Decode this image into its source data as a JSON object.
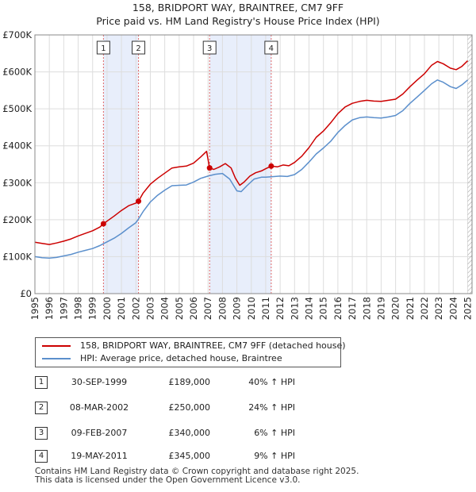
{
  "chart_data": {
    "type": "line",
    "title": "158, BRIDPORT WAY, BRAINTREE, CM7 9FF",
    "subtitle": "Price paid vs. HM Land Registry's House Price Index (HPI)",
    "xlim": [
      1995,
      2025.3
    ],
    "ylim": [
      0,
      700000
    ],
    "y_ticks": [
      {
        "value": 0,
        "label": "£0"
      },
      {
        "value": 100000,
        "label": "£100K"
      },
      {
        "value": 200000,
        "label": "£200K"
      },
      {
        "value": 300000,
        "label": "£300K"
      },
      {
        "value": 400000,
        "label": "£400K"
      },
      {
        "value": 500000,
        "label": "£500K"
      },
      {
        "value": 600000,
        "label": "£600K"
      },
      {
        "value": 700000,
        "label": "£700K"
      }
    ],
    "x_ticks": [
      "1995",
      "1996",
      "1997",
      "1998",
      "1999",
      "2000",
      "2001",
      "2002",
      "2003",
      "2004",
      "2005",
      "2006",
      "2007",
      "2008",
      "2009",
      "2010",
      "2011",
      "2012",
      "2013",
      "2014",
      "2015",
      "2016",
      "2017",
      "2018",
      "2019",
      "2020",
      "2021",
      "2022",
      "2023",
      "2024",
      "2025"
    ],
    "shaded_regions": [
      [
        1999.75,
        2002.18
      ],
      [
        2007.11,
        2011.38
      ]
    ],
    "series": [
      {
        "name": "158, BRIDPORT WAY, BRAINTREE, CM7 9FF (detached house)",
        "color": "#cc0000",
        "points": [
          [
            1995.0,
            139000
          ],
          [
            1995.5,
            136000
          ],
          [
            1996.0,
            133000
          ],
          [
            1996.5,
            137000
          ],
          [
            1997.0,
            142000
          ],
          [
            1997.5,
            148000
          ],
          [
            1998.0,
            156000
          ],
          [
            1998.5,
            163000
          ],
          [
            1999.0,
            170000
          ],
          [
            1999.5,
            180000
          ],
          [
            1999.75,
            189000
          ],
          [
            2000.0,
            196000
          ],
          [
            2000.5,
            210000
          ],
          [
            2001.0,
            225000
          ],
          [
            2001.5,
            238000
          ],
          [
            2002.0,
            245000
          ],
          [
            2002.18,
            250000
          ],
          [
            2002.5,
            272000
          ],
          [
            2003.0,
            296000
          ],
          [
            2003.5,
            312000
          ],
          [
            2004.0,
            326000
          ],
          [
            2004.5,
            340000
          ],
          [
            2005.0,
            343000
          ],
          [
            2005.5,
            345000
          ],
          [
            2006.0,
            353000
          ],
          [
            2006.5,
            370000
          ],
          [
            2006.9,
            385000
          ],
          [
            2007.11,
            340000
          ],
          [
            2007.4,
            336000
          ],
          [
            2007.8,
            343000
          ],
          [
            2008.2,
            352000
          ],
          [
            2008.6,
            340000
          ],
          [
            2008.9,
            312000
          ],
          [
            2009.2,
            293000
          ],
          [
            2009.5,
            302000
          ],
          [
            2009.9,
            318000
          ],
          [
            2010.3,
            327000
          ],
          [
            2010.7,
            332000
          ],
          [
            2011.0,
            338000
          ],
          [
            2011.38,
            345000
          ],
          [
            2011.8,
            343000
          ],
          [
            2012.2,
            348000
          ],
          [
            2012.6,
            346000
          ],
          [
            2013.0,
            355000
          ],
          [
            2013.5,
            372000
          ],
          [
            2014.0,
            395000
          ],
          [
            2014.5,
            423000
          ],
          [
            2015.0,
            440000
          ],
          [
            2015.5,
            462000
          ],
          [
            2016.0,
            487000
          ],
          [
            2016.5,
            505000
          ],
          [
            2017.0,
            515000
          ],
          [
            2017.5,
            520000
          ],
          [
            2018.0,
            523000
          ],
          [
            2018.5,
            521000
          ],
          [
            2019.0,
            520000
          ],
          [
            2019.5,
            523000
          ],
          [
            2020.0,
            526000
          ],
          [
            2020.5,
            540000
          ],
          [
            2021.0,
            560000
          ],
          [
            2021.5,
            578000
          ],
          [
            2022.0,
            595000
          ],
          [
            2022.5,
            618000
          ],
          [
            2022.9,
            628000
          ],
          [
            2023.3,
            622000
          ],
          [
            2023.8,
            610000
          ],
          [
            2024.2,
            606000
          ],
          [
            2024.6,
            615000
          ],
          [
            2025.0,
            630000
          ]
        ]
      },
      {
        "name": "HPI: Average price, detached house, Braintree",
        "color": "#5b8fcc",
        "points": [
          [
            1995.0,
            100000
          ],
          [
            1995.5,
            97000
          ],
          [
            1996.0,
            96000
          ],
          [
            1996.5,
            98000
          ],
          [
            1997.0,
            102000
          ],
          [
            1997.5,
            106000
          ],
          [
            1998.0,
            112000
          ],
          [
            1998.5,
            117000
          ],
          [
            1999.0,
            122000
          ],
          [
            1999.5,
            130000
          ],
          [
            1999.75,
            135000
          ],
          [
            2000.0,
            140000
          ],
          [
            2000.5,
            150000
          ],
          [
            2001.0,
            163000
          ],
          [
            2001.5,
            178000
          ],
          [
            2002.0,
            192000
          ],
          [
            2002.18,
            202000
          ],
          [
            2002.5,
            222000
          ],
          [
            2003.0,
            248000
          ],
          [
            2003.5,
            266000
          ],
          [
            2004.0,
            280000
          ],
          [
            2004.5,
            292000
          ],
          [
            2005.0,
            293000
          ],
          [
            2005.5,
            294000
          ],
          [
            2006.0,
            302000
          ],
          [
            2006.5,
            312000
          ],
          [
            2007.0,
            318000
          ],
          [
            2007.5,
            323000
          ],
          [
            2008.0,
            325000
          ],
          [
            2008.5,
            310000
          ],
          [
            2009.0,
            278000
          ],
          [
            2009.3,
            276000
          ],
          [
            2009.7,
            292000
          ],
          [
            2010.2,
            310000
          ],
          [
            2010.7,
            315000
          ],
          [
            2011.0,
            315000
          ],
          [
            2011.38,
            316000
          ],
          [
            2012.0,
            318000
          ],
          [
            2012.5,
            317000
          ],
          [
            2013.0,
            322000
          ],
          [
            2013.5,
            336000
          ],
          [
            2014.0,
            356000
          ],
          [
            2014.5,
            378000
          ],
          [
            2015.0,
            394000
          ],
          [
            2015.5,
            412000
          ],
          [
            2016.0,
            436000
          ],
          [
            2016.5,
            455000
          ],
          [
            2017.0,
            470000
          ],
          [
            2017.5,
            476000
          ],
          [
            2018.0,
            478000
          ],
          [
            2018.5,
            476000
          ],
          [
            2019.0,
            475000
          ],
          [
            2019.5,
            478000
          ],
          [
            2020.0,
            482000
          ],
          [
            2020.5,
            495000
          ],
          [
            2021.0,
            515000
          ],
          [
            2021.5,
            532000
          ],
          [
            2022.0,
            550000
          ],
          [
            2022.5,
            568000
          ],
          [
            2022.9,
            578000
          ],
          [
            2023.3,
            572000
          ],
          [
            2023.8,
            560000
          ],
          [
            2024.2,
            555000
          ],
          [
            2024.6,
            565000
          ],
          [
            2025.0,
            578000
          ]
        ]
      }
    ],
    "sales": [
      {
        "n": "1",
        "x": 1999.75,
        "price": 189000,
        "date": "30-SEP-1999",
        "price_label": "£189,000",
        "hpi": "40% ↑ HPI"
      },
      {
        "n": "2",
        "x": 2002.18,
        "price": 250000,
        "date": "08-MAR-2002",
        "price_label": "£250,000",
        "hpi": "24% ↑ HPI"
      },
      {
        "n": "3",
        "x": 2007.11,
        "price": 340000,
        "date": "09-FEB-2007",
        "price_label": "£340,000",
        "hpi": "6% ↑ HPI"
      },
      {
        "n": "4",
        "x": 2011.38,
        "price": 345000,
        "date": "19-MAY-2011",
        "price_label": "£345,000",
        "hpi": "9% ↑ HPI"
      }
    ]
  },
  "legend": {
    "property": "158, BRIDPORT WAY, BRAINTREE, CM7 9FF (detached house)",
    "hpi": "HPI: Average price, detached house, Braintree",
    "property_color": "#cc0000",
    "hpi_color": "#5b8fcc"
  },
  "footer": {
    "line1": "Contains HM Land Registry data © Crown copyright and database right 2025.",
    "line2": "This data is licensed under the Open Government Licence v3.0."
  }
}
